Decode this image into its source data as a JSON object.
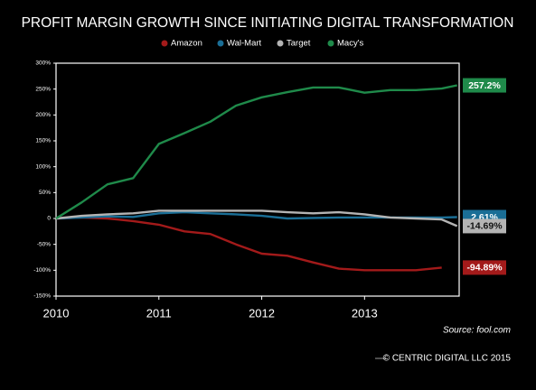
{
  "chart_data": {
    "type": "line",
    "title": "PROFIT MARGIN GROWTH SINCE INITIATING DIGITAL TRANSFORMATION",
    "source": "Source: fool.com",
    "footer": "© CENTRIC DIGITAL LLC 2015",
    "x": [
      2010,
      2010.25,
      2010.5,
      2010.75,
      2011,
      2011.25,
      2011.5,
      2011.75,
      2012,
      2012.25,
      2012.5,
      2012.75,
      2013,
      2013.25,
      2013.5,
      2013.75,
      2013.9
    ],
    "xlim": [
      2010,
      2013.92
    ],
    "xticks": [
      2010,
      2011,
      2012,
      2013
    ],
    "ylim": [
      -150,
      300
    ],
    "yticks": [
      {
        "value": 300,
        "label": "300%"
      },
      {
        "value": 250,
        "label": "250%"
      },
      {
        "value": 200,
        "label": "200%"
      },
      {
        "value": 150,
        "label": "150%"
      },
      {
        "value": 100,
        "label": "100%"
      },
      {
        "value": 50,
        "label": "50%"
      },
      0,
      {
        "value": -50,
        "label": "-50%"
      },
      {
        "value": -100,
        "label": "-100%"
      },
      {
        "value": -150,
        "label": "-150%"
      }
    ],
    "series": [
      {
        "name": "Amazon",
        "color": "#a31a1a",
        "values": [
          0,
          2,
          0,
          -5,
          -12,
          -25,
          -30,
          -50,
          -68,
          -72,
          -85,
          -97,
          -100,
          -100,
          -100,
          -94.89,
          null
        ],
        "value_labels": [
          null,
          null,
          null,
          null,
          null,
          null,
          null,
          null,
          null,
          null,
          null,
          null,
          null,
          null,
          null,
          "-94.89%",
          null
        ]
      },
      {
        "name": "Wal-Mart",
        "color": "#1a6e96",
        "values": [
          0,
          2,
          4,
          3,
          10,
          12,
          10,
          8,
          5,
          0,
          1,
          2,
          2,
          2,
          2,
          2,
          2.61
        ],
        "value_labels": [
          null,
          null,
          null,
          null,
          null,
          null,
          null,
          null,
          null,
          null,
          null,
          null,
          null,
          null,
          null,
          null,
          "2.61%"
        ]
      },
      {
        "name": "Target",
        "color": "#b4b4b4",
        "values": [
          0,
          5,
          8,
          10,
          15,
          15,
          15,
          15,
          15,
          12,
          10,
          12,
          8,
          2,
          0,
          -2,
          -14.69
        ],
        "value_labels": [
          null,
          null,
          null,
          null,
          null,
          null,
          null,
          null,
          null,
          null,
          null,
          null,
          null,
          null,
          null,
          null,
          "-14.69%"
        ]
      },
      {
        "name": "Macy's",
        "color": "#1f8a4a",
        "values": [
          0,
          31,
          66,
          78,
          144,
          165,
          187,
          218,
          234,
          244,
          253,
          253,
          243,
          248,
          248,
          251,
          257.2
        ],
        "value_labels": [
          null,
          null,
          null,
          null,
          null,
          null,
          null,
          null,
          null,
          null,
          null,
          null,
          null,
          null,
          null,
          null,
          "257.2%"
        ]
      }
    ]
  }
}
